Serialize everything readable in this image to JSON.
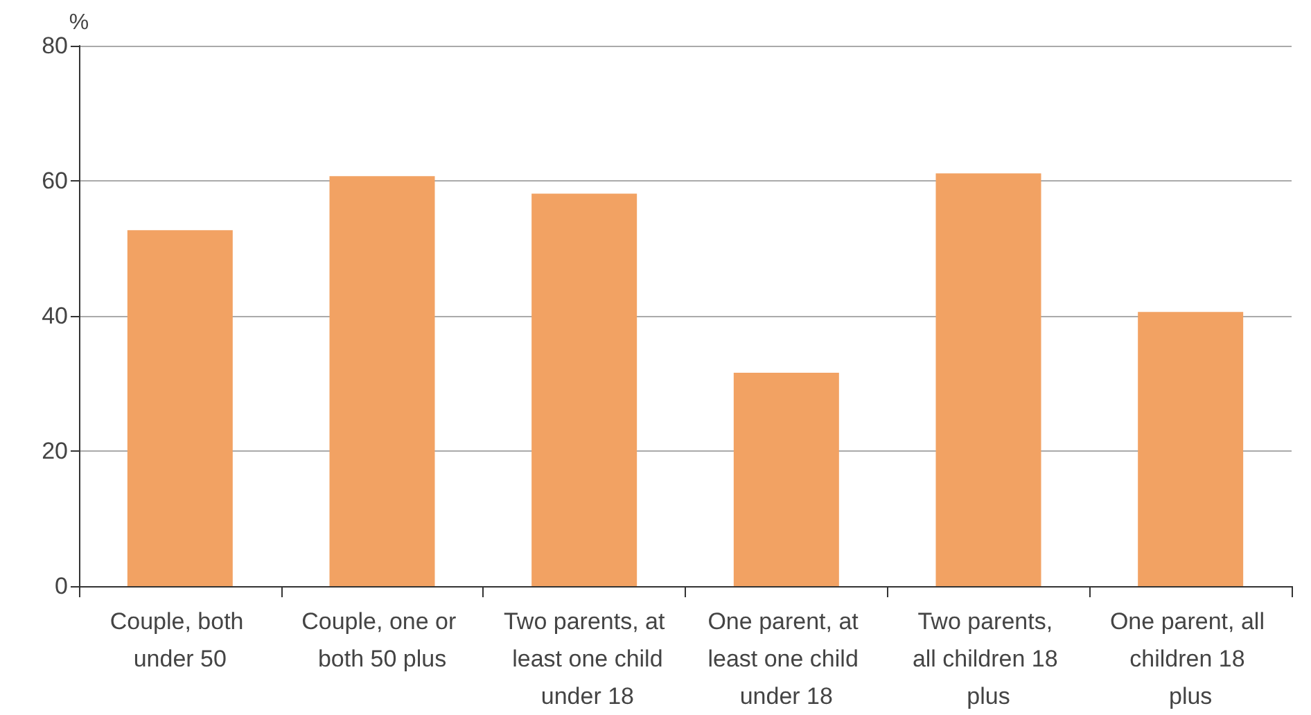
{
  "chart_data": {
    "type": "bar",
    "ylabel": "%",
    "categories": [
      "Couple, both under 50",
      "Couple, one or both 50 plus",
      "Two parents, at least one child under 18",
      "One parent, at least one child under 18",
      "Two parents, all children 18 plus",
      "One parent, all children 18 plus"
    ],
    "values": [
      52.7,
      60.7,
      58.1,
      31.6,
      61.1,
      40.6
    ],
    "color": "#f2a263",
    "ylim": [
      0,
      80
    ],
    "yticks": [
      0,
      20,
      40,
      60,
      80
    ],
    "grid": "y"
  }
}
